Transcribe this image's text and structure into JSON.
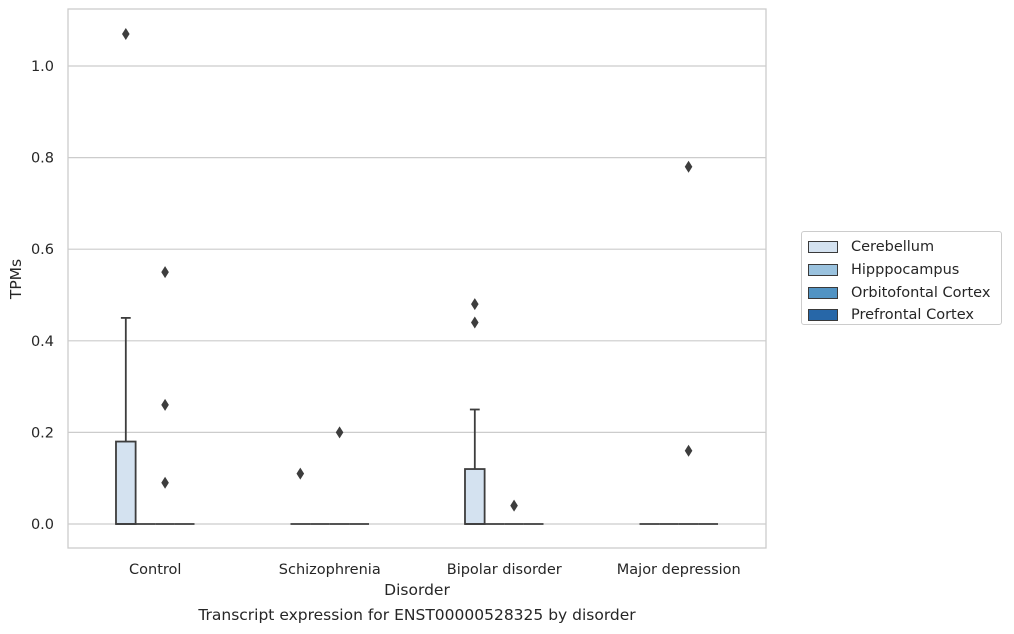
{
  "chart_data": {
    "type": "box",
    "caption": "Transcript expression for ENST00000528325 by disorder",
    "xlabel": "Disorder",
    "ylabel": "TPMs",
    "ylim": [
      -0.05,
      1.13
    ],
    "yticks": [
      "0.0",
      "0.2",
      "0.4",
      "0.6",
      "0.8",
      "1.0"
    ],
    "grid": "horizontal",
    "legend_placement": "right",
    "categories": [
      "Control",
      "Schizophrenia",
      "Bipolar disorder",
      "Major depression"
    ],
    "series": [
      {
        "name": "Cerebellum",
        "color": "#d4e2f0",
        "boxes": [
          {
            "q1": 0.0,
            "median": 0.0,
            "q3": 0.18,
            "whisker_low": 0.0,
            "whisker_high": 0.45,
            "outliers": [
              1.07
            ]
          },
          {
            "q1": 0.0,
            "median": 0.0,
            "q3": 0.0,
            "whisker_low": 0.0,
            "whisker_high": 0.0,
            "outliers": [
              0.11
            ]
          },
          {
            "q1": 0.0,
            "median": 0.0,
            "q3": 0.12,
            "whisker_low": 0.0,
            "whisker_high": 0.25,
            "outliers": [
              0.44,
              0.48
            ]
          },
          {
            "q1": 0.0,
            "median": 0.0,
            "q3": 0.0,
            "whisker_low": 0.0,
            "whisker_high": 0.0,
            "outliers": []
          }
        ]
      },
      {
        "name": "Hipppocampus",
        "color": "#9ac2de",
        "boxes": [
          {
            "q1": 0.0,
            "median": 0.0,
            "q3": 0.0,
            "whisker_low": 0.0,
            "whisker_high": 0.0,
            "outliers": []
          },
          {
            "q1": 0.0,
            "median": 0.0,
            "q3": 0.0,
            "whisker_low": 0.0,
            "whisker_high": 0.0,
            "outliers": []
          },
          {
            "q1": 0.0,
            "median": 0.0,
            "q3": 0.0,
            "whisker_low": 0.0,
            "whisker_high": 0.0,
            "outliers": []
          },
          {
            "q1": 0.0,
            "median": 0.0,
            "q3": 0.0,
            "whisker_low": 0.0,
            "whisker_high": 0.0,
            "outliers": []
          }
        ]
      },
      {
        "name": "Orbitofontal Cortex",
        "color": "#5193c3",
        "boxes": [
          {
            "q1": 0.0,
            "median": 0.0,
            "q3": 0.0,
            "whisker_low": 0.0,
            "whisker_high": 0.0,
            "outliers": [
              0.09,
              0.26,
              0.55
            ]
          },
          {
            "q1": 0.0,
            "median": 0.0,
            "q3": 0.0,
            "whisker_low": 0.0,
            "whisker_high": 0.0,
            "outliers": [
              0.2
            ]
          },
          {
            "q1": 0.0,
            "median": 0.0,
            "q3": 0.0,
            "whisker_low": 0.0,
            "whisker_high": 0.0,
            "outliers": [
              0.04
            ]
          },
          {
            "q1": 0.0,
            "median": 0.0,
            "q3": 0.0,
            "whisker_low": 0.0,
            "whisker_high": 0.0,
            "outliers": [
              0.16,
              0.78
            ]
          }
        ]
      },
      {
        "name": "Prefrontal Cortex",
        "color": "#2767a8",
        "boxes": [
          {
            "q1": 0.0,
            "median": 0.0,
            "q3": 0.0,
            "whisker_low": 0.0,
            "whisker_high": 0.0,
            "outliers": []
          },
          {
            "q1": 0.0,
            "median": 0.0,
            "q3": 0.0,
            "whisker_low": 0.0,
            "whisker_high": 0.0,
            "outliers": []
          },
          {
            "q1": 0.0,
            "median": 0.0,
            "q3": 0.0,
            "whisker_low": 0.0,
            "whisker_high": 0.0,
            "outliers": []
          },
          {
            "q1": 0.0,
            "median": 0.0,
            "q3": 0.0,
            "whisker_low": 0.0,
            "whisker_high": 0.0,
            "outliers": []
          }
        ]
      }
    ]
  }
}
